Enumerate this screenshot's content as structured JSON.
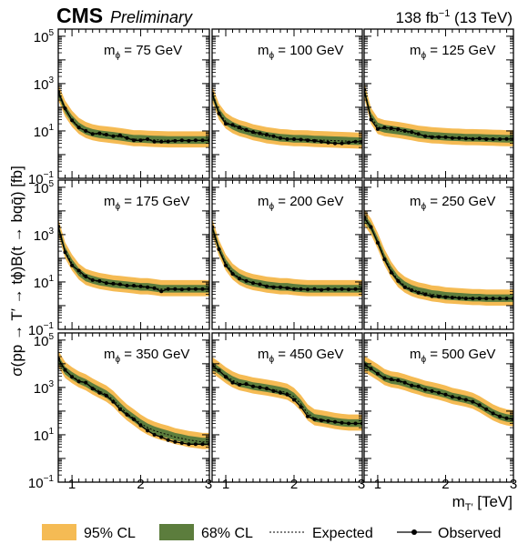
{
  "header": {
    "experiment": "CMS",
    "status": "Preliminary",
    "lumi_prefix": "138 fb",
    "lumi_exp": "−1",
    "lumi_suffix": " (13 TeV)"
  },
  "axes": {
    "ylabel": "σ(pp → T′ → tϕ)B(t → bqq̄) [fb]",
    "xlabel_main": "m",
    "xlabel_sub": "T′",
    "xlabel_unit": " [TeV]",
    "x_ticks": [
      "1",
      "2",
      "3"
    ],
    "y_ticks": [
      {
        "base": "10",
        "exp": "5"
      },
      {
        "base": "10",
        "exp": "3"
      },
      {
        "base": "10",
        "exp": "1"
      },
      {
        "base": "10",
        "exp": "−1"
      }
    ]
  },
  "legend": {
    "band95": "95% CL",
    "band68": "68% CL",
    "expected": "Expected",
    "observed": "Observed"
  },
  "colors": {
    "band95": "#f5bb54",
    "band68": "#5c7d3d",
    "expected": "#000000",
    "observed": "#000000"
  },
  "chart_data": {
    "type": "line",
    "layout": "3x3 grid with shared axes",
    "xlabel": "mT′ [TeV]",
    "ylabel": "σ(pp → T′ → tϕ)B(t → bqq̄) [fb]",
    "xlim": [
      0.8,
      3.0
    ],
    "ylim": [
      0.1,
      200000
    ],
    "yscale": "log",
    "grid": false,
    "legend_position": "bottom",
    "x": [
      0.8,
      0.9,
      1.0,
      1.1,
      1.2,
      1.3,
      1.4,
      1.5,
      1.6,
      1.7,
      1.8,
      1.9,
      2.0,
      2.1,
      2.2,
      2.3,
      2.4,
      2.5,
      2.6,
      2.7,
      2.8,
      2.9,
      3.0
    ],
    "panels": [
      {
        "label": "mϕ = 75 GeV",
        "label_base": "m",
        "label_sub": "ϕ",
        "label_rest": " = 75 GeV",
        "expected": [
          400,
          80,
          30,
          15,
          10,
          8,
          7,
          6.5,
          6,
          5.5,
          5,
          4.5,
          4.5,
          4.3,
          4.2,
          4.1,
          4,
          4,
          4,
          4,
          4,
          4,
          4
        ],
        "observed": [
          450,
          90,
          28,
          14,
          10,
          7.5,
          8,
          7,
          6,
          6.5,
          5,
          4,
          4,
          4.5,
          3.5,
          3.5,
          3.6,
          3.8,
          4,
          3.8,
          4,
          4,
          4
        ]
      },
      {
        "label": "mϕ = 100 GeV",
        "label_base": "m",
        "label_sub": "ϕ",
        "label_rest": " = 100 GeV",
        "expected": [
          350,
          60,
          25,
          16,
          12,
          10,
          8,
          7,
          6,
          5.5,
          5,
          4.8,
          4.5,
          4.5,
          4.4,
          4.2,
          4.1,
          4,
          3.9,
          3.8,
          3.7,
          3.6,
          3.5
        ],
        "observed": [
          380,
          55,
          20,
          18,
          14,
          11,
          9,
          8,
          7,
          6,
          5,
          4.5,
          4.5,
          4.3,
          4,
          3.8,
          3.5,
          3.2,
          3,
          3,
          3.2,
          3.5,
          3.5
        ]
      },
      {
        "label": "mϕ = 125 GeV",
        "label_base": "m",
        "label_sub": "ϕ",
        "label_rest": " = 125 GeV",
        "expected": [
          500,
          40,
          15,
          12,
          11,
          10,
          9,
          8,
          7,
          6.5,
          6,
          5.8,
          5.5,
          5.3,
          5.2,
          5,
          5,
          4.9,
          4.8,
          4.7,
          4.6,
          4.5,
          4.5
        ],
        "observed": [
          550,
          30,
          12,
          14,
          13,
          12,
          10,
          9,
          7.5,
          6,
          5.5,
          5.5,
          5.5,
          5,
          5,
          4.8,
          4.6,
          4.8,
          4.5,
          4.5,
          4.5,
          4.6,
          4.5
        ]
      },
      {
        "label": "mϕ = 175 GeV",
        "label_base": "m",
        "label_sub": "ϕ",
        "label_rest": " = 175 GeV",
        "expected": [
          2000,
          200,
          60,
          25,
          15,
          12,
          10,
          9,
          8,
          7.5,
          7,
          6.5,
          6,
          6,
          5.5,
          5,
          5,
          5,
          5,
          5,
          5,
          5,
          5
        ],
        "observed": [
          2200,
          180,
          50,
          30,
          17,
          12,
          11,
          9,
          8.5,
          8,
          7,
          7,
          6.5,
          6,
          5.5,
          4,
          5,
          5,
          4.8,
          5,
          5,
          5,
          5
        ]
      },
      {
        "label": "mϕ = 200 GeV",
        "label_base": "m",
        "label_sub": "ϕ",
        "label_rest": " = 200 GeV",
        "expected": [
          2000,
          250,
          60,
          25,
          15,
          11,
          9,
          8,
          7,
          6.5,
          6,
          6,
          5.5,
          5.2,
          5,
          5,
          5,
          5,
          5,
          5,
          5,
          5,
          5
        ],
        "observed": [
          2100,
          240,
          50,
          22,
          14,
          11,
          9,
          8,
          6.5,
          6,
          6,
          5.5,
          5,
          5,
          4.8,
          5,
          4.6,
          5,
          4.8,
          5,
          4.8,
          5,
          5
        ]
      },
      {
        "label": "mϕ = 250 GeV",
        "label_base": "m",
        "label_sub": "ϕ",
        "label_rest": " = 250 GeV",
        "expected": [
          5000,
          2000,
          500,
          100,
          30,
          12,
          7,
          5,
          4,
          3.5,
          3,
          2.8,
          2.5,
          2.4,
          2.3,
          2.2,
          2.1,
          2.1,
          2,
          2,
          2,
          2,
          2
        ],
        "observed": [
          5200,
          2100,
          450,
          90,
          25,
          11,
          6,
          4.5,
          3.5,
          3,
          2.5,
          2.4,
          2.3,
          2.2,
          2.1,
          2,
          2,
          2,
          2,
          2,
          2,
          2,
          2
        ]
      },
      {
        "label": "mϕ = 350 GeV",
        "label_base": "m",
        "label_sub": "ϕ",
        "label_rest": " = 350 GeV",
        "expected": [
          15000,
          5000,
          3000,
          2000,
          1500,
          1000,
          700,
          500,
          300,
          150,
          80,
          50,
          30,
          20,
          15,
          12,
          10,
          8,
          7,
          6,
          5.5,
          5,
          5
        ],
        "observed": [
          16000,
          5500,
          2800,
          1800,
          1600,
          900,
          600,
          450,
          250,
          120,
          70,
          45,
          25,
          15,
          10,
          8,
          6,
          5,
          4.5,
          4,
          4,
          4,
          4
        ]
      },
      {
        "label": "mϕ = 450 GeV",
        "label_base": "m",
        "label_sub": "ϕ",
        "label_rest": " = 450 GeV",
        "expected": [
          8000,
          5000,
          3000,
          2000,
          1500,
          1300,
          1100,
          1000,
          900,
          800,
          700,
          600,
          400,
          200,
          80,
          50,
          45,
          40,
          35,
          32,
          30,
          30,
          30
        ],
        "observed": [
          8500,
          5200,
          2800,
          1600,
          1300,
          1400,
          1100,
          1000,
          900,
          700,
          600,
          500,
          300,
          150,
          60,
          45,
          40,
          38,
          35,
          32,
          30,
          30,
          30
        ]
      },
      {
        "label": "mϕ = 500 GeV",
        "label_base": "m",
        "label_sub": "ϕ",
        "label_rest": " = 500 GeV",
        "expected": [
          9000,
          6000,
          4000,
          2500,
          2000,
          1800,
          1500,
          1200,
          1000,
          800,
          700,
          600,
          500,
          400,
          350,
          300,
          250,
          180,
          120,
          80,
          60,
          50,
          45
        ],
        "observed": [
          9500,
          6200,
          3800,
          2500,
          2200,
          2000,
          1600,
          1200,
          1100,
          800,
          700,
          600,
          500,
          400,
          350,
          300,
          250,
          180,
          120,
          80,
          60,
          50,
          45
        ]
      }
    ]
  }
}
